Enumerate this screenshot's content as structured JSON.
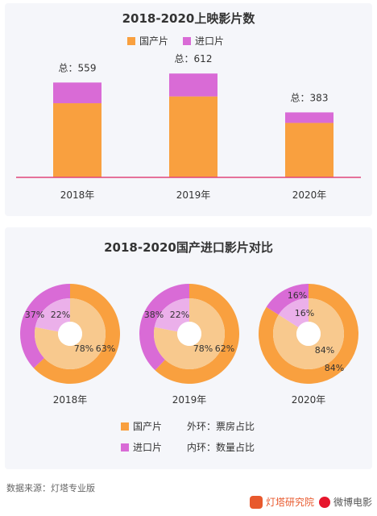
{
  "colors": {
    "domestic": "#F9A03F",
    "imported": "#D96BD6",
    "domestic_inner": "#F8C98E",
    "imported_inner": "#EBB0EA",
    "axis": "#E0457B"
  },
  "bar_panel": {
    "title": "2018-2020上映影片数",
    "legend": [
      "国产片",
      "进口片"
    ]
  },
  "donut_panel": {
    "title": "2018-2020国产进口影片对比",
    "legend": {
      "domestic": "国产片",
      "imported": "进口片",
      "outer_note": "外环：票房占比",
      "inner_note": "内环：数量占比"
    }
  },
  "footer": {
    "source": "数据来源：灯塔专业版",
    "logo1": "灯塔研究院",
    "logo2": "微博电影"
  },
  "chart_data": [
    {
      "type": "bar",
      "stacked": true,
      "title": "2018-2020上映影片数",
      "categories": [
        "2018年",
        "2019年",
        "2020年"
      ],
      "series": [
        {
          "name": "国产片",
          "values": [
            437,
            477,
            321
          ]
        },
        {
          "name": "进口片",
          "values": [
            122,
            135,
            62
          ]
        }
      ],
      "totals": [
        559,
        612,
        383
      ],
      "total_labels": [
        "总：559",
        "总：612",
        "总：383"
      ],
      "ylim": [
        0,
        650
      ],
      "grid": false,
      "legend_position": "top"
    },
    {
      "type": "pie",
      "variant": "double-donut",
      "title": "2018-2020国产进口影片对比",
      "categories": [
        "2018年",
        "2019年",
        "2020年"
      ],
      "outer_ring": {
        "meaning": "票房占比",
        "series": [
          {
            "name": "国产片",
            "values": [
              63,
              62,
              84
            ]
          },
          {
            "name": "进口片",
            "values": [
              37,
              38,
              16
            ]
          }
        ]
      },
      "inner_ring": {
        "meaning": "数量占比",
        "series": [
          {
            "name": "国产片",
            "values": [
              78,
              78,
              84
            ]
          },
          {
            "name": "进口片",
            "values": [
              22,
              22,
              16
            ]
          }
        ]
      },
      "legend_position": "bottom"
    }
  ]
}
